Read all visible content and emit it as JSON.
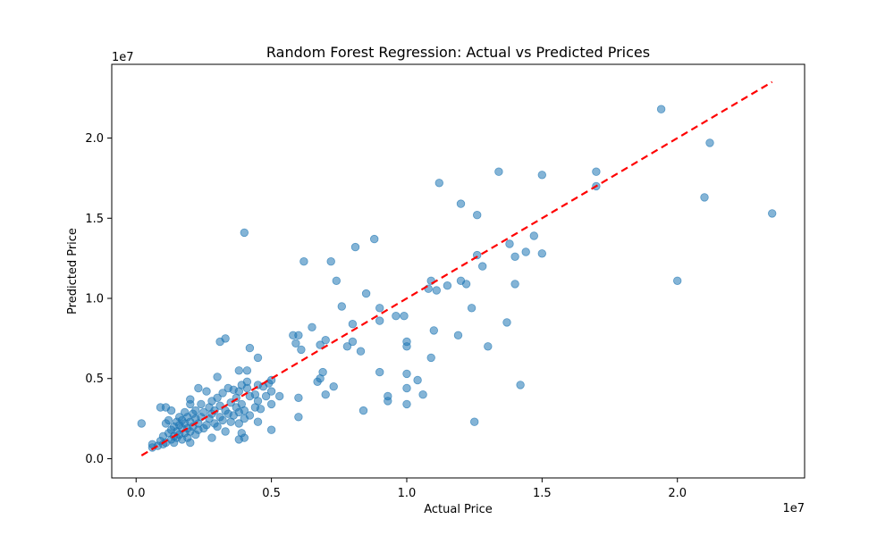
{
  "chart_data": {
    "type": "scatter",
    "title": "Random Forest Regression: Actual vs Predicted Prices",
    "xlabel": "Actual Price",
    "ylabel": "Predicted Price",
    "x_offset_label": "1e7",
    "y_offset_label": "1e7",
    "xlim": [
      -0.9,
      24.7
    ],
    "ylim": [
      -1.2,
      24.6
    ],
    "x_ticks": [
      0,
      5,
      10,
      15,
      20
    ],
    "x_tick_labels": [
      "0.0",
      "0.5",
      "1.0",
      "1.5",
      "2.0"
    ],
    "y_ticks": [
      0,
      5,
      10,
      15,
      20
    ],
    "y_tick_labels": [
      "0.0",
      "0.5",
      "1.0",
      "1.5",
      "2.0"
    ],
    "grid": false,
    "point_color": "#1f77b4",
    "point_alpha": 0.55,
    "reference_line": {
      "x": [
        0.2,
        23.5
      ],
      "y": [
        0.2,
        23.5
      ],
      "color": "#ff0000",
      "style": "dashed"
    },
    "series": [
      {
        "points": [
          [
            0.2,
            2.2
          ],
          [
            0.6,
            0.7
          ],
          [
            0.6,
            0.9
          ],
          [
            0.8,
            0.8
          ],
          [
            0.9,
            1.1
          ],
          [
            0.9,
            3.2
          ],
          [
            1.0,
            0.9
          ],
          [
            1.0,
            1.4
          ],
          [
            1.1,
            1.0
          ],
          [
            1.1,
            2.2
          ],
          [
            1.1,
            3.2
          ],
          [
            1.2,
            1.6
          ],
          [
            1.2,
            2.4
          ],
          [
            1.3,
            1.2
          ],
          [
            1.3,
            1.8
          ],
          [
            1.3,
            3.0
          ],
          [
            1.4,
            1.0
          ],
          [
            1.4,
            1.4
          ],
          [
            1.4,
            2.0
          ],
          [
            1.5,
            1.3
          ],
          [
            1.5,
            1.7
          ],
          [
            1.5,
            2.3
          ],
          [
            1.6,
            1.5
          ],
          [
            1.6,
            2.1
          ],
          [
            1.6,
            2.6
          ],
          [
            1.7,
            1.2
          ],
          [
            1.7,
            1.9
          ],
          [
            1.7,
            2.4
          ],
          [
            1.8,
            1.6
          ],
          [
            1.8,
            2.2
          ],
          [
            1.8,
            2.9
          ],
          [
            1.9,
            1.3
          ],
          [
            1.9,
            1.9
          ],
          [
            1.9,
            2.6
          ],
          [
            2.0,
            1.0
          ],
          [
            2.0,
            1.7
          ],
          [
            2.0,
            2.3
          ],
          [
            2.0,
            3.4
          ],
          [
            2.0,
            3.7
          ],
          [
            2.1,
            2.0
          ],
          [
            2.1,
            2.8
          ],
          [
            2.2,
            1.5
          ],
          [
            2.2,
            2.5
          ],
          [
            2.2,
            3.0
          ],
          [
            2.3,
            1.8
          ],
          [
            2.3,
            2.2
          ],
          [
            2.3,
            4.4
          ],
          [
            2.4,
            2.6
          ],
          [
            2.4,
            3.4
          ],
          [
            2.5,
            1.9
          ],
          [
            2.5,
            2.9
          ],
          [
            2.6,
            2.1
          ],
          [
            2.6,
            4.2
          ],
          [
            2.7,
            2.5
          ],
          [
            2.7,
            3.2
          ],
          [
            2.8,
            1.3
          ],
          [
            2.8,
            2.8
          ],
          [
            2.8,
            3.6
          ],
          [
            2.9,
            2.2
          ],
          [
            2.9,
            3.0
          ],
          [
            3.0,
            2.0
          ],
          [
            3.0,
            3.8
          ],
          [
            3.0,
            5.1
          ],
          [
            3.1,
            2.6
          ],
          [
            3.1,
            3.3
          ],
          [
            3.1,
            7.3
          ],
          [
            3.2,
            2.4
          ],
          [
            3.2,
            4.1
          ],
          [
            3.3,
            1.7
          ],
          [
            3.3,
            3.0
          ],
          [
            3.3,
            7.5
          ],
          [
            3.4,
            2.8
          ],
          [
            3.4,
            4.4
          ],
          [
            3.5,
            2.3
          ],
          [
            3.5,
            3.5
          ],
          [
            3.6,
            2.7
          ],
          [
            3.6,
            4.3
          ],
          [
            3.7,
            3.2
          ],
          [
            3.7,
            3.8
          ],
          [
            3.8,
            1.2
          ],
          [
            3.8,
            2.2
          ],
          [
            3.8,
            2.9
          ],
          [
            3.8,
            4.2
          ],
          [
            3.8,
            5.5
          ],
          [
            3.9,
            1.6
          ],
          [
            3.9,
            3.4
          ],
          [
            3.9,
            4.6
          ],
          [
            4.0,
            1.3
          ],
          [
            4.0,
            2.5
          ],
          [
            4.0,
            3.0
          ],
          [
            4.0,
            14.1
          ],
          [
            4.1,
            4.4
          ],
          [
            4.1,
            4.8
          ],
          [
            4.1,
            5.5
          ],
          [
            4.2,
            2.7
          ],
          [
            4.2,
            3.9
          ],
          [
            4.2,
            6.9
          ],
          [
            4.4,
            3.2
          ],
          [
            4.4,
            4.0
          ],
          [
            4.5,
            2.3
          ],
          [
            4.5,
            3.6
          ],
          [
            4.5,
            4.6
          ],
          [
            4.5,
            6.3
          ],
          [
            4.6,
            3.1
          ],
          [
            4.7,
            4.5
          ],
          [
            4.8,
            3.9
          ],
          [
            4.9,
            4.7
          ],
          [
            5.0,
            1.8
          ],
          [
            5.0,
            3.4
          ],
          [
            5.0,
            4.2
          ],
          [
            5.0,
            4.9
          ],
          [
            5.3,
            3.9
          ],
          [
            5.8,
            7.7
          ],
          [
            5.9,
            7.2
          ],
          [
            6.0,
            2.6
          ],
          [
            6.0,
            3.8
          ],
          [
            6.0,
            7.7
          ],
          [
            6.1,
            6.8
          ],
          [
            6.2,
            12.3
          ],
          [
            6.5,
            8.2
          ],
          [
            6.7,
            4.8
          ],
          [
            6.8,
            5.0
          ],
          [
            6.8,
            7.1
          ],
          [
            6.9,
            5.4
          ],
          [
            7.0,
            4.0
          ],
          [
            7.0,
            7.4
          ],
          [
            7.2,
            12.3
          ],
          [
            7.3,
            4.5
          ],
          [
            7.4,
            11.1
          ],
          [
            7.6,
            9.5
          ],
          [
            7.8,
            7.0
          ],
          [
            8.0,
            7.3
          ],
          [
            8.0,
            8.4
          ],
          [
            8.1,
            13.2
          ],
          [
            8.3,
            6.7
          ],
          [
            8.4,
            3.0
          ],
          [
            8.5,
            10.3
          ],
          [
            8.8,
            13.7
          ],
          [
            9.0,
            5.4
          ],
          [
            9.0,
            8.6
          ],
          [
            9.0,
            9.4
          ],
          [
            9.3,
            3.6
          ],
          [
            9.3,
            3.9
          ],
          [
            9.6,
            8.9
          ],
          [
            9.9,
            8.9
          ],
          [
            10.0,
            3.4
          ],
          [
            10.0,
            4.4
          ],
          [
            10.0,
            5.3
          ],
          [
            10.0,
            7.0
          ],
          [
            10.0,
            7.3
          ],
          [
            10.4,
            4.9
          ],
          [
            10.6,
            4.0
          ],
          [
            10.8,
            10.6
          ],
          [
            10.9,
            6.3
          ],
          [
            10.9,
            11.1
          ],
          [
            11.0,
            8.0
          ],
          [
            11.1,
            10.5
          ],
          [
            11.2,
            17.2
          ],
          [
            11.5,
            10.8
          ],
          [
            11.9,
            7.7
          ],
          [
            12.0,
            11.1
          ],
          [
            12.0,
            15.9
          ],
          [
            12.2,
            10.9
          ],
          [
            12.4,
            9.4
          ],
          [
            12.5,
            2.3
          ],
          [
            12.6,
            12.7
          ],
          [
            12.6,
            15.2
          ],
          [
            12.8,
            12.0
          ],
          [
            13.0,
            7.0
          ],
          [
            13.4,
            17.9
          ],
          [
            13.7,
            8.5
          ],
          [
            13.8,
            13.4
          ],
          [
            14.0,
            10.9
          ],
          [
            14.0,
            12.6
          ],
          [
            14.2,
            4.6
          ],
          [
            14.4,
            12.9
          ],
          [
            14.7,
            13.9
          ],
          [
            15.0,
            12.8
          ],
          [
            15.0,
            17.7
          ],
          [
            17.0,
            17.0
          ],
          [
            17.0,
            17.9
          ],
          [
            19.4,
            21.8
          ],
          [
            20.0,
            11.1
          ],
          [
            21.0,
            16.3
          ],
          [
            21.2,
            19.7
          ],
          [
            23.5,
            15.3
          ]
        ]
      }
    ]
  }
}
